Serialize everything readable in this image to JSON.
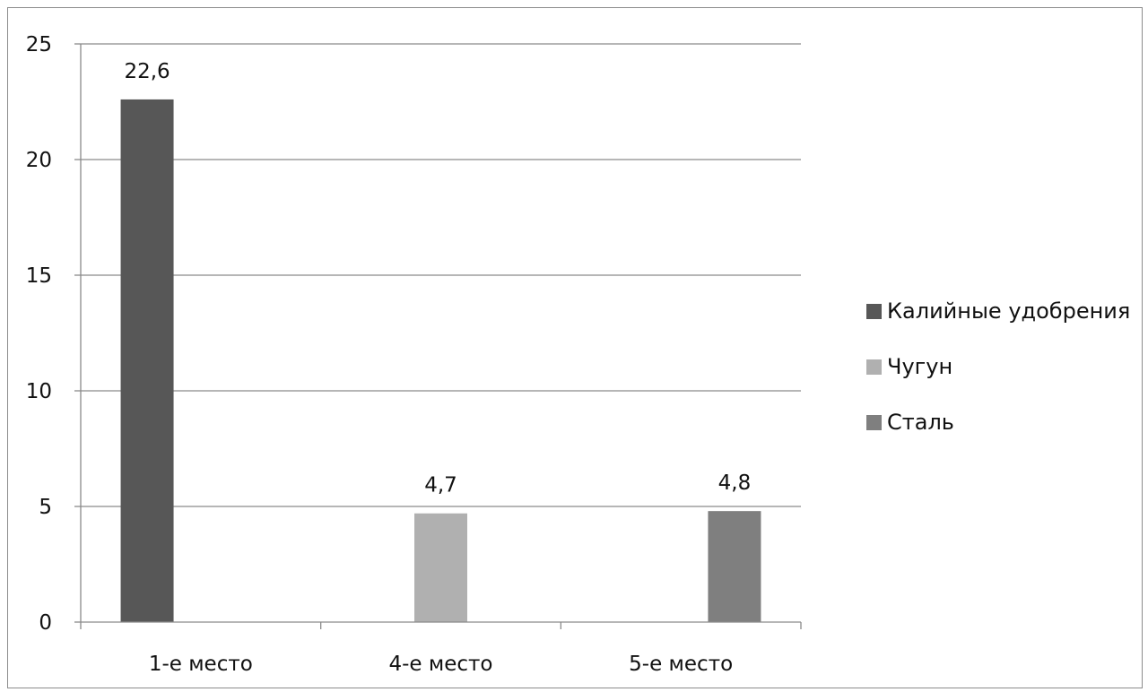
{
  "chart_data": {
    "type": "bar",
    "categories": [
      "1-е место",
      "4-е место",
      "5-е место"
    ],
    "series": [
      {
        "name": "Калийные удобрения",
        "values": [
          22.6,
          null,
          null
        ],
        "color": "#575757"
      },
      {
        "name": "Чугун",
        "values": [
          null,
          4.7,
          null
        ],
        "color": "#b0b0b0"
      },
      {
        "name": "Сталь",
        "values": [
          null,
          null,
          4.8
        ],
        "color": "#7f7f7f"
      }
    ],
    "data_labels": [
      "22,6",
      "4,7",
      "4,8"
    ],
    "yticks": [
      "0",
      "5",
      "10",
      "15",
      "20",
      "25"
    ],
    "ylim": [
      0,
      25
    ],
    "grid": true,
    "legend_position": "right",
    "title": "",
    "xlabel": "",
    "ylabel": ""
  }
}
